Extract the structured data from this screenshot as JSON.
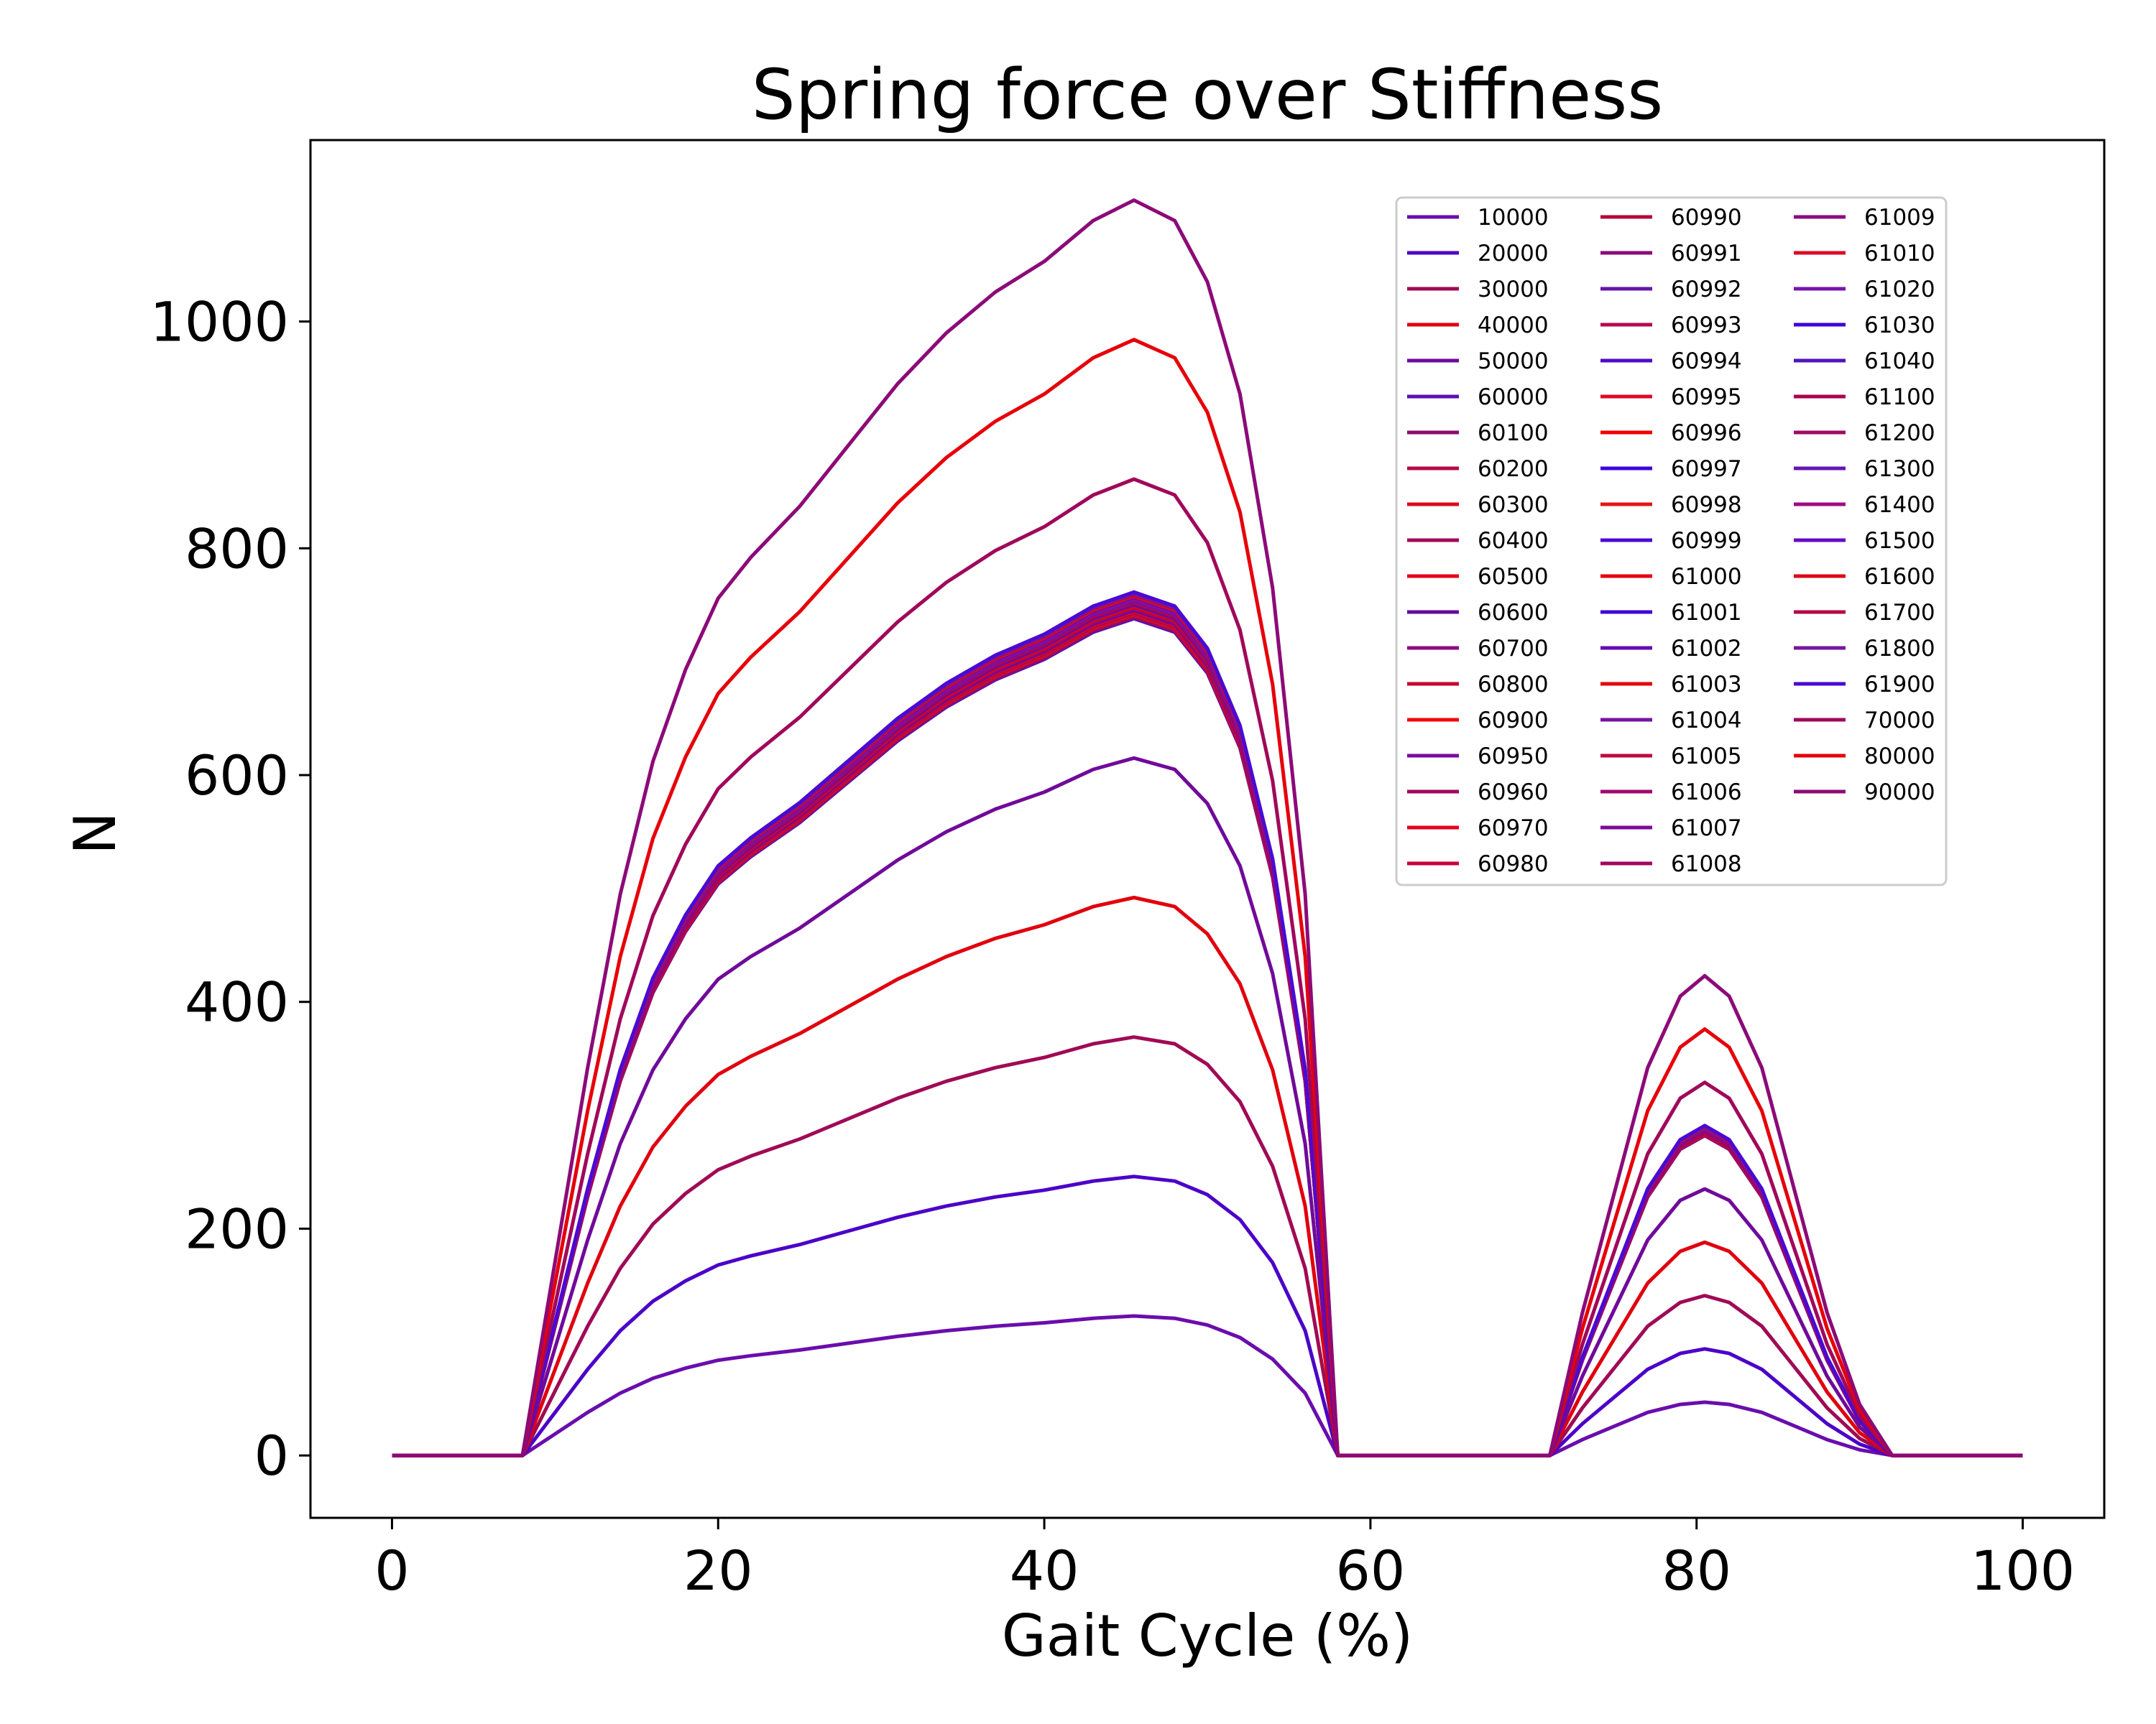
{
  "chart_data": {
    "type": "line",
    "title": "Spring force over Stiffness",
    "xlabel": "Gait Cycle (%)",
    "ylabel": "N",
    "xlim": [
      -5,
      105
    ],
    "ylim": [
      -55,
      1160
    ],
    "xticks": [
      0,
      20,
      40,
      60,
      80,
      100
    ],
    "yticks": [
      0,
      200,
      400,
      600,
      800,
      1000
    ],
    "legend": {
      "location": "top-right",
      "columns": 3
    },
    "profile": {
      "x": [
        0,
        8,
        10,
        12,
        14,
        16,
        18,
        20,
        22,
        25,
        28,
        31,
        34,
        37,
        40,
        43,
        45.5,
        48,
        50,
        52,
        54,
        56,
        58,
        71,
        73,
        75,
        77,
        79,
        80.5,
        82,
        84,
        86,
        88,
        90,
        92,
        100
      ],
      "y_per_10000": [
        0,
        0,
        19,
        38,
        55,
        68,
        77,
        84,
        88,
        93,
        99,
        105,
        110,
        114,
        117,
        121,
        123,
        121,
        115,
        104,
        85,
        55,
        0,
        0,
        14,
        26,
        38,
        45,
        47,
        45,
        38,
        26,
        14,
        5,
        0,
        0
      ]
    },
    "series": [
      {
        "name": "10000",
        "stiffness": 10000,
        "color": "#6a0dad"
      },
      {
        "name": "20000",
        "stiffness": 20000,
        "color": "#4b00c8"
      },
      {
        "name": "30000",
        "stiffness": 30000,
        "color": "#a00a55"
      },
      {
        "name": "40000",
        "stiffness": 40000,
        "color": "#e0000e"
      },
      {
        "name": "50000",
        "stiffness": 50000,
        "color": "#700a9a"
      },
      {
        "name": "60000",
        "stiffness": 60000,
        "color": "#5a12b4"
      },
      {
        "name": "60100",
        "stiffness": 60100,
        "color": "#8c0a6e"
      },
      {
        "name": "60200",
        "stiffness": 60200,
        "color": "#b40a46"
      },
      {
        "name": "60300",
        "stiffness": 60300,
        "color": "#dc0a1e"
      },
      {
        "name": "60400",
        "stiffness": 60400,
        "color": "#a00a5a"
      },
      {
        "name": "60500",
        "stiffness": 60500,
        "color": "#e6001a"
      },
      {
        "name": "60600",
        "stiffness": 60600,
        "color": "#640aa0"
      },
      {
        "name": "60700",
        "stiffness": 60700,
        "color": "#8c0a82"
      },
      {
        "name": "60800",
        "stiffness": 60800,
        "color": "#c8002d"
      },
      {
        "name": "60900",
        "stiffness": 60900,
        "color": "#f00a0a"
      },
      {
        "name": "60950",
        "stiffness": 60950,
        "color": "#780aa0"
      },
      {
        "name": "60960",
        "stiffness": 60960,
        "color": "#a0085a"
      },
      {
        "name": "60970",
        "stiffness": 60970,
        "color": "#e6001e"
      },
      {
        "name": "60980",
        "stiffness": 60980,
        "color": "#c8003c"
      },
      {
        "name": "60990",
        "stiffness": 60990,
        "color": "#b4083c"
      },
      {
        "name": "60991",
        "stiffness": 60991,
        "color": "#8c0a78"
      },
      {
        "name": "60992",
        "stiffness": 60992,
        "color": "#6414aa"
      },
      {
        "name": "60993",
        "stiffness": 60993,
        "color": "#b40a50"
      },
      {
        "name": "60994",
        "stiffness": 60994,
        "color": "#500ac8"
      },
      {
        "name": "60995",
        "stiffness": 60995,
        "color": "#dc0a28"
      },
      {
        "name": "60996",
        "stiffness": 60996,
        "color": "#f00000"
      },
      {
        "name": "60997",
        "stiffness": 60997,
        "color": "#3c00dc"
      },
      {
        "name": "60998",
        "stiffness": 60998,
        "color": "#e61414"
      },
      {
        "name": "60999",
        "stiffness": 60999,
        "color": "#4b0ad2"
      },
      {
        "name": "61000",
        "stiffness": 61000,
        "color": "#e6000f"
      },
      {
        "name": "61001",
        "stiffness": 61001,
        "color": "#3c0ad2"
      },
      {
        "name": "61002",
        "stiffness": 61002,
        "color": "#640ab4"
      },
      {
        "name": "61003",
        "stiffness": 61003,
        "color": "#e6000a"
      },
      {
        "name": "61004",
        "stiffness": 61004,
        "color": "#7814a0"
      },
      {
        "name": "61005",
        "stiffness": 61005,
        "color": "#be0a3c"
      },
      {
        "name": "61006",
        "stiffness": 61006,
        "color": "#a00a6e"
      },
      {
        "name": "61007",
        "stiffness": 61007,
        "color": "#7d0a9b"
      },
      {
        "name": "61008",
        "stiffness": 61008,
        "color": "#a0085f"
      },
      {
        "name": "61009",
        "stiffness": 61009,
        "color": "#8c0a82"
      },
      {
        "name": "61010",
        "stiffness": 61010,
        "color": "#dc0a28"
      },
      {
        "name": "61020",
        "stiffness": 61020,
        "color": "#7814aa"
      },
      {
        "name": "61030",
        "stiffness": 61030,
        "color": "#3c00d7"
      },
      {
        "name": "61040",
        "stiffness": 61040,
        "color": "#5014be"
      },
      {
        "name": "61100",
        "stiffness": 61100,
        "color": "#aa0050"
      },
      {
        "name": "61200",
        "stiffness": 61200,
        "color": "#a00a64"
      },
      {
        "name": "61300",
        "stiffness": 61300,
        "color": "#6414b4"
      },
      {
        "name": "61400",
        "stiffness": 61400,
        "color": "#a00a82"
      },
      {
        "name": "61500",
        "stiffness": 61500,
        "color": "#640ac8"
      },
      {
        "name": "61600",
        "stiffness": 61600,
        "color": "#dc0a14"
      },
      {
        "name": "61700",
        "stiffness": 61700,
        "color": "#b40a46"
      },
      {
        "name": "61800",
        "stiffness": 61800,
        "color": "#7814a0"
      },
      {
        "name": "61900",
        "stiffness": 61900,
        "color": "#4b0ad2"
      },
      {
        "name": "70000",
        "stiffness": 70000,
        "color": "#a0085a"
      },
      {
        "name": "80000",
        "stiffness": 80000,
        "color": "#e6000a"
      },
      {
        "name": "90000",
        "stiffness": 90000,
        "color": "#8c0a78"
      }
    ]
  }
}
